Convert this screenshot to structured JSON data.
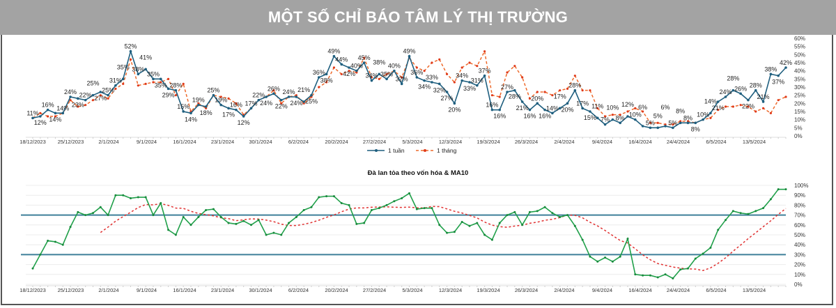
{
  "title": "MỘT SỐ CHỈ BÁO TÂM LÝ THỊ TRƯỜNG",
  "colors": {
    "title_bg": "#a3a3a3",
    "week": "#1f5f7f",
    "month": "#ee6a2c",
    "breadth": "#20a04a",
    "ma": "#e03030",
    "threshold": "#3d7f99"
  },
  "chart_data": [
    {
      "type": "line",
      "title": "",
      "x_tick_labels": [
        "18/12/2023",
        "25/12/2023",
        "2/1/2024",
        "9/1/2024",
        "16/1/2024",
        "23/1/2024",
        "30/1/2024",
        "6/2/2024",
        "20/2/2024",
        "27/2/2024",
        "5/3/2024",
        "12/3/2024",
        "19/3/2024",
        "26/3/2024",
        "2/4/2024",
        "9/4/2024",
        "16/4/2024",
        "24/4/2024",
        "6/5/2024",
        "13/5/2024"
      ],
      "y_tick_labels": [
        "0%",
        "5%",
        "10%",
        "15%",
        "20%",
        "25%",
        "30%",
        "35%",
        "40%",
        "45%",
        "50%",
        "55%",
        "60%"
      ],
      "ylim": [
        0,
        60
      ],
      "legend": {
        "position": "bottom",
        "items": [
          "1 tuần",
          "1 tháng"
        ]
      },
      "series": [
        {
          "name": "1 tuần",
          "style": "solid-marker",
          "data_labels": true,
          "values": [
            11,
            12,
            16,
            14,
            14,
            24,
            23,
            22,
            25,
            27,
            25,
            31,
            35,
            52,
            38,
            41,
            35,
            35,
            29,
            28,
            15,
            14,
            19,
            18,
            25,
            19,
            17,
            16,
            12,
            17,
            22,
            24,
            26,
            22,
            24,
            24,
            21,
            25,
            36,
            38,
            49,
            44,
            42,
            40,
            45,
            34,
            38,
            35,
            40,
            32,
            49,
            36,
            34,
            33,
            32,
            27,
            20,
            34,
            33,
            31,
            37,
            16,
            16,
            27,
            28,
            21,
            16,
            20,
            16,
            14,
            17,
            20,
            28,
            17,
            15,
            11,
            7,
            10,
            8,
            12,
            10,
            6,
            5,
            5,
            6,
            5,
            8,
            8,
            8,
            10,
            14,
            21,
            24,
            28,
            26,
            22,
            28,
            21,
            38,
            37,
            42
          ]
        },
        {
          "name": "1 tháng",
          "style": "dashed",
          "values": [
            11,
            14,
            12,
            12,
            14,
            22,
            18,
            19,
            22,
            25,
            23,
            29,
            32,
            47,
            31,
            32,
            33,
            33,
            35,
            25,
            32,
            15,
            20,
            17,
            25,
            24,
            23,
            20,
            13,
            17,
            22,
            24,
            28,
            20,
            24,
            25,
            20,
            24,
            30,
            33,
            42,
            38,
            40,
            39,
            48,
            36,
            35,
            38,
            40,
            36,
            48,
            42,
            40,
            45,
            47,
            38,
            33,
            42,
            45,
            43,
            52,
            25,
            24,
            39,
            43,
            36,
            23,
            27,
            27,
            25,
            28,
            29,
            37,
            28,
            28,
            17,
            12,
            13,
            13,
            15,
            17,
            15,
            8,
            8,
            7,
            7,
            9,
            9,
            8,
            10,
            11,
            16,
            18,
            18,
            19,
            18,
            15,
            17,
            14,
            22,
            24
          ]
        }
      ]
    },
    {
      "type": "line",
      "title": "Đà lan tỏa theo vốn hóa & MA10",
      "x_tick_labels": [
        "18/12/2023",
        "25/12/2023",
        "2/1/2024",
        "9/1/2024",
        "16/1/2024",
        "23/1/2024",
        "30/1/2024",
        "6/2/2024",
        "20/2/2024",
        "27/2/2024",
        "5/3/2024",
        "12/3/2024",
        "19/3/2024",
        "26/3/2024",
        "2/4/2024",
        "9/4/2024",
        "16/4/2024",
        "24/4/2024",
        "6/5/2024",
        "13/5/2024"
      ],
      "y_tick_labels": [
        "0%",
        "10%",
        "20%",
        "30%",
        "40%",
        "50%",
        "60%",
        "70%",
        "80%",
        "90%",
        "100%"
      ],
      "ylim": [
        0,
        100
      ],
      "grid": true,
      "thresholds": [
        70,
        30
      ],
      "ma_window": 10,
      "series": [
        {
          "name": "Đà lan tỏa",
          "style": "solid-marker",
          "values": [
            16,
            30,
            44,
            43,
            40,
            58,
            73,
            70,
            72,
            78,
            70,
            90,
            90,
            87,
            88,
            88,
            70,
            82,
            55,
            50,
            68,
            60,
            68,
            75,
            76,
            68,
            62,
            61,
            64,
            60,
            65,
            50,
            52,
            50,
            62,
            68,
            75,
            78,
            88,
            89,
            89,
            82,
            80,
            61,
            62,
            75,
            77,
            80,
            84,
            87,
            92,
            76,
            77,
            77,
            60,
            52,
            53,
            63,
            59,
            62,
            50,
            45,
            62,
            70,
            73,
            60,
            73,
            74,
            78,
            72,
            68,
            70,
            59,
            45,
            28,
            23,
            27,
            23,
            28,
            46,
            10,
            9,
            9,
            7,
            10,
            6,
            15,
            16,
            26,
            31,
            37,
            55,
            65,
            74,
            72,
            71,
            74,
            77,
            86,
            96,
            96
          ]
        },
        {
          "name": "MA10",
          "style": "dashed",
          "derived_from": "Đà lan tỏa"
        }
      ]
    }
  ]
}
